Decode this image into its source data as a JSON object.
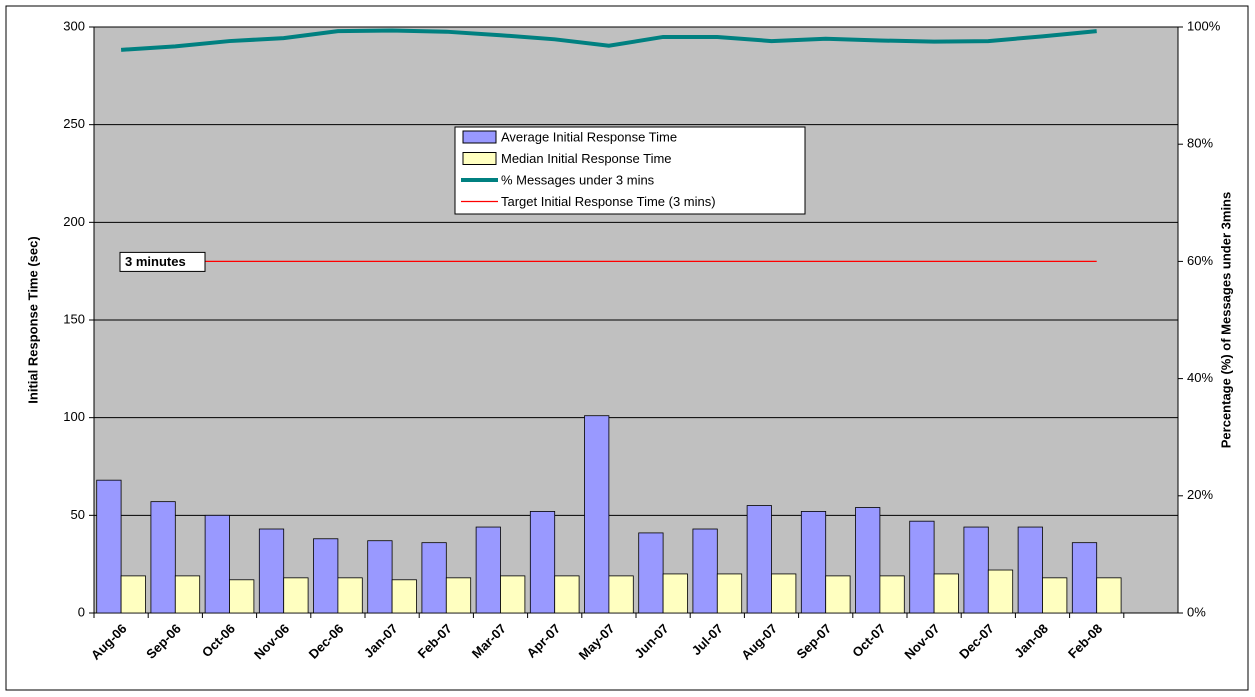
{
  "chart_data": {
    "type": "bar",
    "categories": [
      "Aug-06",
      "Sep-06",
      "Oct-06",
      "Nov-06",
      "Dec-06",
      "Jan-07",
      "Feb-07",
      "Mar-07",
      "Apr-07",
      "May-07",
      "Jun-07",
      "Jul-07",
      "Aug-07",
      "Sep-07",
      "Oct-07",
      "Nov-07",
      "Dec-07",
      "Jan-08",
      "Feb-08",
      null
    ],
    "series": [
      {
        "name": "Average Initial Response Time",
        "type": "bar",
        "color": "#9999ff",
        "values": [
          68,
          57,
          50,
          43,
          38,
          37,
          36,
          44,
          52,
          101,
          41,
          43,
          55,
          52,
          54,
          47,
          44,
          44,
          36,
          null
        ]
      },
      {
        "name": "Median Initial Response Time",
        "type": "bar",
        "color": "#ffffc0",
        "values": [
          19,
          19,
          17,
          18,
          18,
          17,
          18,
          19,
          19,
          19,
          20,
          20,
          20,
          19,
          19,
          20,
          22,
          18,
          18,
          null
        ]
      },
      {
        "name": "% Messages under 3 mins",
        "type": "line",
        "axis": "y2",
        "color": "#008080",
        "values": [
          96.1,
          96.7,
          97.6,
          98.1,
          99.3,
          99.4,
          99.2,
          98.6,
          97.9,
          96.8,
          98.3,
          98.3,
          97.6,
          98.0,
          97.7,
          97.5,
          97.6,
          98.4,
          99.3,
          null
        ]
      },
      {
        "name": "Target Initial Response Time (3 mins)",
        "type": "line",
        "color": "#ff0000",
        "values": [
          180,
          180,
          180,
          180,
          180,
          180,
          180,
          180,
          180,
          180,
          180,
          180,
          180,
          180,
          180,
          180,
          180,
          180,
          180,
          null
        ]
      }
    ],
    "y_label": "Initial Response Time (sec)",
    "y2_label": "Percentage (%) of Messages under 3mins",
    "annotation": "3 minutes",
    "ylim": [
      0,
      300
    ],
    "yticks": [
      0,
      50,
      100,
      150,
      200,
      250,
      300
    ],
    "y2lim": [
      0,
      100
    ],
    "y2ticks": [
      {
        "value": 0,
        "label": "0%"
      },
      {
        "value": 20,
        "label": "20%"
      },
      {
        "value": 40,
        "label": "40%"
      },
      {
        "value": 60,
        "label": "60%"
      },
      {
        "value": 80,
        "label": "80%"
      },
      {
        "value": 100,
        "label": "100%"
      }
    ],
    "grid": true
  }
}
